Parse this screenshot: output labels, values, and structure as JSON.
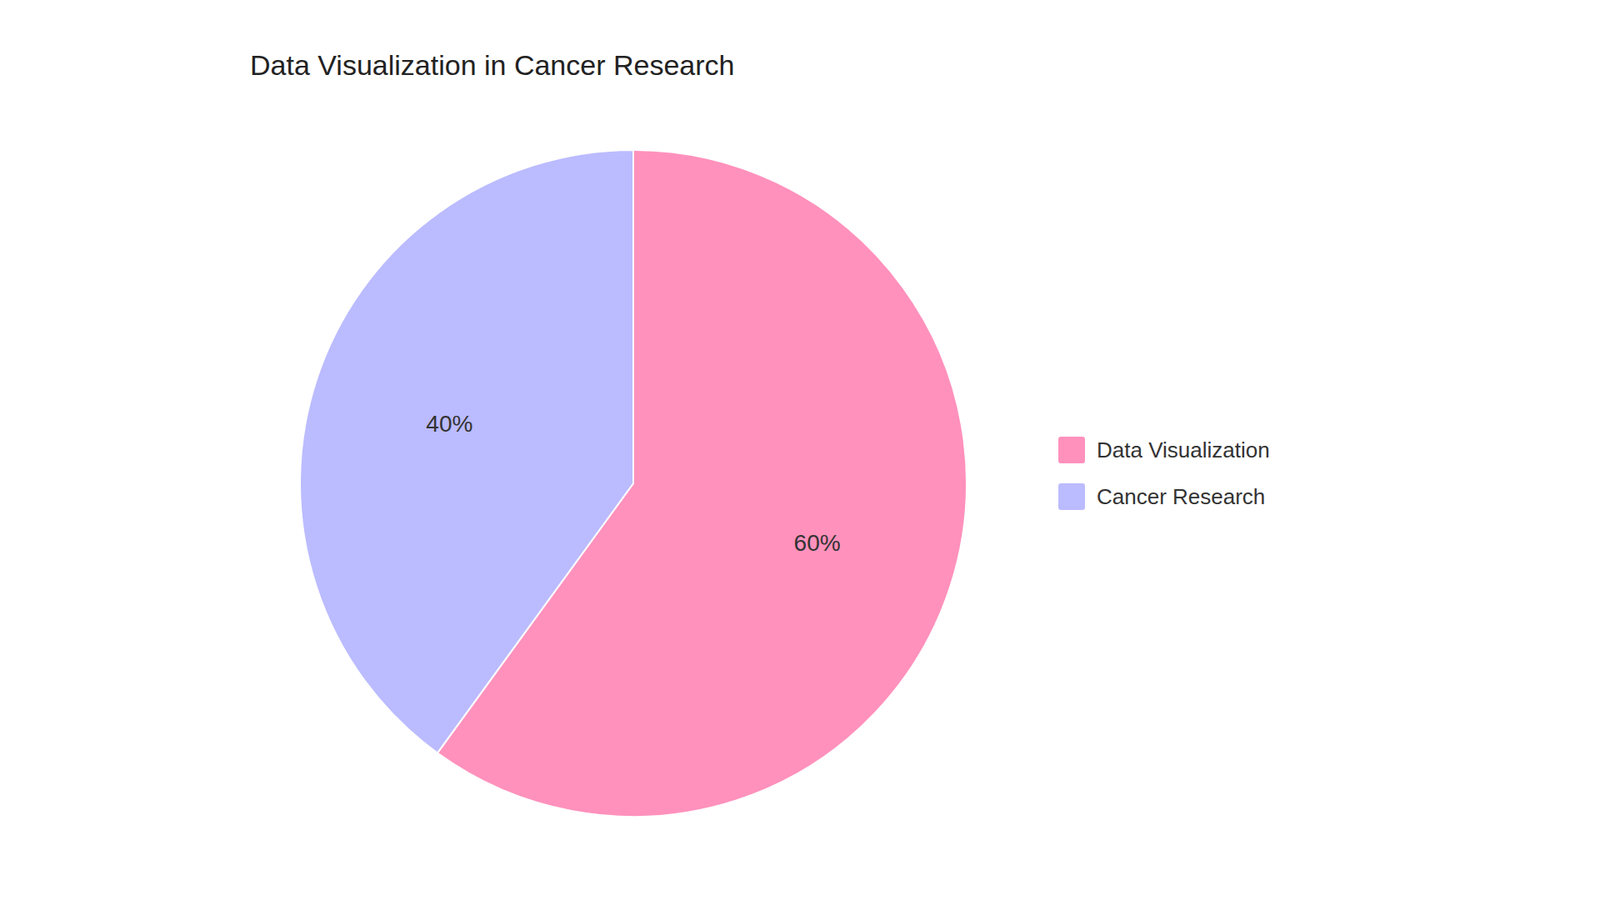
{
  "chart_data": {
    "type": "pie",
    "title": "Data Visualization in Cancer Research",
    "categories": [
      "Data Visualization",
      "Cancer Research"
    ],
    "values": [
      60,
      40
    ],
    "value_labels": [
      "60%",
      "40%"
    ],
    "colors": [
      "#FF91BC",
      "#BBBBFF"
    ],
    "data_labels": true,
    "legend": "right"
  }
}
